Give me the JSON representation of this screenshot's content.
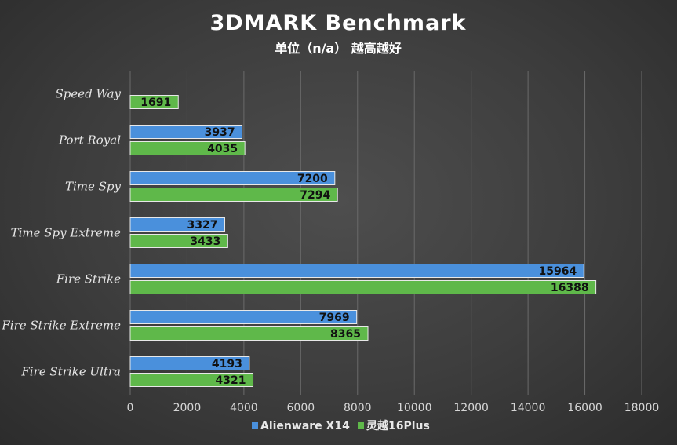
{
  "colors": {
    "series_a": "#4a90dc",
    "series_b": "#5fb84a",
    "bar_stroke": "#e8e8e8"
  },
  "chart_data": {
    "type": "bar",
    "orientation": "horizontal",
    "title": "3DMARK Benchmark",
    "subtitle": "单位（n/a） 越高越好",
    "categories": [
      "Speed Way",
      "Port Royal",
      "Time Spy",
      "Time Spy Extreme",
      "Fire Strike",
      "Fire Strike Extreme",
      "Fire Strike Ultra"
    ],
    "series": [
      {
        "name": "Alienware X14",
        "color": "#4a90dc",
        "values": [
          null,
          3937,
          7200,
          3327,
          15964,
          7969,
          4193
        ]
      },
      {
        "name": "灵越16Plus",
        "color": "#5fb84a",
        "values": [
          1691,
          4035,
          7294,
          3433,
          16388,
          8365,
          4321
        ]
      }
    ],
    "xlim": [
      0,
      18000
    ],
    "xticks": [
      0,
      2000,
      4000,
      6000,
      8000,
      10000,
      12000,
      14000,
      16000,
      18000
    ],
    "grid": true,
    "legend_position": "bottom",
    "xlabel": "",
    "ylabel": ""
  }
}
